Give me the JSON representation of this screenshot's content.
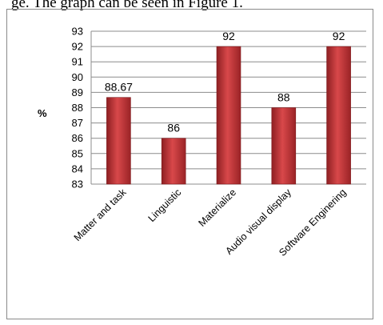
{
  "document": {
    "caption_fragment": "ge. The graph can be seen in Figure 1."
  },
  "chart_data": {
    "type": "bar",
    "categories": [
      "Matter and task",
      "Linguistic",
      "Materialize",
      "Audio visual display",
      "Software Enginering"
    ],
    "values": [
      88.67,
      86,
      92,
      88,
      92
    ],
    "data_labels": [
      "88.67",
      "86",
      "92",
      "88",
      "92"
    ],
    "ylabel": "%",
    "xlabel": "",
    "ylim": [
      83,
      93
    ],
    "yticks": [
      83,
      84,
      85,
      86,
      87,
      88,
      89,
      90,
      91,
      92,
      93
    ],
    "grid": true,
    "legend": "none",
    "bar_color": "#c0393b"
  }
}
